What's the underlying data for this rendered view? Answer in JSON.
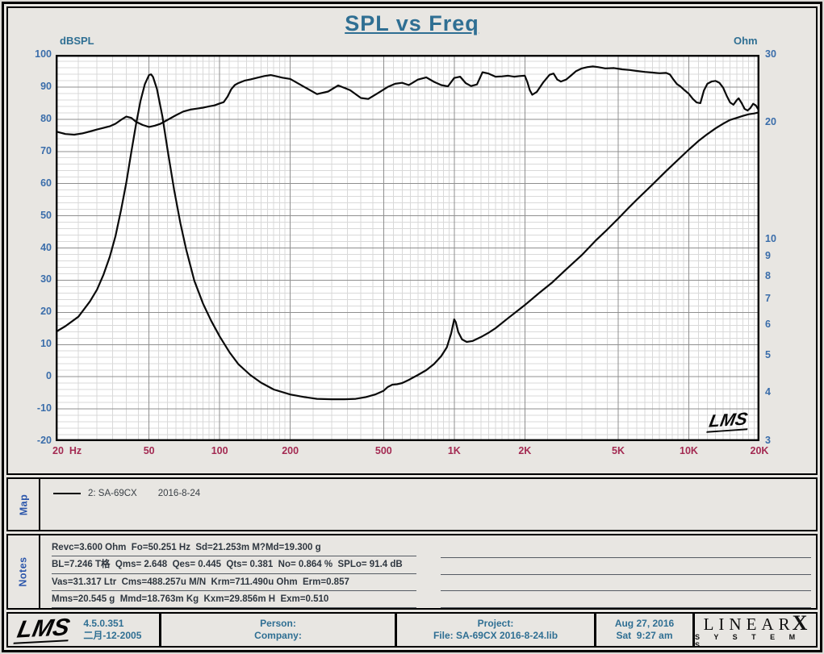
{
  "title": "SPL vs Freq",
  "colors": {
    "title_teal": "#2f6f93",
    "y_tick_blue": "#3a6daa",
    "x_tick_maroon": "#a32a52",
    "panel_label_blue": "#2a55aa",
    "curve_black": "#0a0a0a",
    "plot_background": "#ffffff",
    "page_background": "#e8e6e2"
  },
  "chart": {
    "left_axis_label": "dBSPL",
    "right_axis_label": "Ohm",
    "watermark": "LMS"
  },
  "chart_data": {
    "type": "line",
    "title": "SPL vs Freq",
    "grid": "on",
    "x_axis": {
      "label": "Hz",
      "scale": "log",
      "min": 20,
      "max": 20000,
      "tick_values": [
        20,
        50,
        100,
        200,
        500,
        1000,
        2000,
        5000,
        10000,
        20000
      ],
      "tick_labels": [
        "20  Hz",
        "50",
        "100",
        "200",
        "500",
        "1K",
        "2K",
        "5K",
        "10K",
        "20K"
      ]
    },
    "y_left_axis": {
      "label": "dBSPL",
      "scale": "linear",
      "min": -20,
      "max": 100,
      "ticks": [
        100,
        90,
        80,
        70,
        60,
        50,
        40,
        30,
        20,
        10,
        0,
        -10,
        -20
      ]
    },
    "y_right_axis": {
      "label": "Ohm",
      "scale": "log",
      "min": 3,
      "max": 30,
      "ticks": [
        30,
        20,
        10,
        9,
        8,
        7,
        6,
        5,
        4,
        3
      ]
    },
    "series": [
      {
        "name": "SPL (dBSPL)",
        "axis": "left",
        "color": "#0a0a0a",
        "points": [
          [
            20,
            76.2
          ],
          [
            22,
            75.4
          ],
          [
            24,
            75.2
          ],
          [
            26,
            75.6
          ],
          [
            28,
            76.2
          ],
          [
            30,
            76.8
          ],
          [
            32,
            77.3
          ],
          [
            34,
            77.8
          ],
          [
            36,
            78.6
          ],
          [
            38,
            79.8
          ],
          [
            40,
            80.8
          ],
          [
            42,
            80.4
          ],
          [
            44,
            79.2
          ],
          [
            47,
            78.2
          ],
          [
            50,
            77.6
          ],
          [
            53,
            78.0
          ],
          [
            56,
            78.6
          ],
          [
            60,
            79.8
          ],
          [
            65,
            81.2
          ],
          [
            70,
            82.4
          ],
          [
            75,
            83.0
          ],
          [
            80,
            83.3
          ],
          [
            85,
            83.6
          ],
          [
            90,
            84.0
          ],
          [
            95,
            84.3
          ],
          [
            100,
            84.9
          ],
          [
            104,
            85.3
          ],
          [
            108,
            87.0
          ],
          [
            112,
            89.3
          ],
          [
            116,
            90.6
          ],
          [
            120,
            91.2
          ],
          [
            128,
            92.0
          ],
          [
            136,
            92.4
          ],
          [
            145,
            92.9
          ],
          [
            155,
            93.4
          ],
          [
            165,
            93.7
          ],
          [
            175,
            93.3
          ],
          [
            185,
            92.9
          ],
          [
            200,
            92.5
          ],
          [
            230,
            90.0
          ],
          [
            260,
            87.8
          ],
          [
            290,
            88.6
          ],
          [
            320,
            90.5
          ],
          [
            360,
            89.0
          ],
          [
            400,
            86.6
          ],
          [
            430,
            86.3
          ],
          [
            470,
            88.0
          ],
          [
            520,
            90.0
          ],
          [
            560,
            91.0
          ],
          [
            600,
            91.3
          ],
          [
            640,
            90.6
          ],
          [
            700,
            92.3
          ],
          [
            760,
            93.0
          ],
          [
            820,
            91.6
          ],
          [
            880,
            90.6
          ],
          [
            940,
            90.2
          ],
          [
            1000,
            92.8
          ],
          [
            1060,
            93.2
          ],
          [
            1120,
            91.2
          ],
          [
            1180,
            90.3
          ],
          [
            1250,
            90.8
          ],
          [
            1320,
            94.6
          ],
          [
            1400,
            94.2
          ],
          [
            1500,
            93.2
          ],
          [
            1600,
            93.3
          ],
          [
            1700,
            93.5
          ],
          [
            1800,
            93.2
          ],
          [
            1900,
            93.4
          ],
          [
            2000,
            93.5
          ],
          [
            2050,
            91.5
          ],
          [
            2100,
            89.0
          ],
          [
            2150,
            87.6
          ],
          [
            2250,
            88.5
          ],
          [
            2400,
            91.5
          ],
          [
            2550,
            93.8
          ],
          [
            2650,
            94.2
          ],
          [
            2750,
            92.3
          ],
          [
            2850,
            91.7
          ],
          [
            3000,
            92.3
          ],
          [
            3150,
            93.6
          ],
          [
            3300,
            94.9
          ],
          [
            3500,
            95.8
          ],
          [
            3700,
            96.2
          ],
          [
            3900,
            96.4
          ],
          [
            4100,
            96.2
          ],
          [
            4400,
            95.8
          ],
          [
            4800,
            95.9
          ],
          [
            5200,
            95.5
          ],
          [
            5600,
            95.3
          ],
          [
            6000,
            95.0
          ],
          [
            6500,
            94.7
          ],
          [
            7000,
            94.5
          ],
          [
            7500,
            94.3
          ],
          [
            8000,
            94.4
          ],
          [
            8300,
            93.9
          ],
          [
            8600,
            92.3
          ],
          [
            8900,
            90.9
          ],
          [
            9200,
            90.2
          ],
          [
            9600,
            89.0
          ],
          [
            10000,
            87.9
          ],
          [
            10400,
            86.3
          ],
          [
            10800,
            85.2
          ],
          [
            11200,
            85.0
          ],
          [
            11600,
            88.9
          ],
          [
            12000,
            91.0
          ],
          [
            12500,
            91.7
          ],
          [
            13000,
            91.9
          ],
          [
            13500,
            91.3
          ],
          [
            14000,
            89.8
          ],
          [
            14500,
            87.3
          ],
          [
            15000,
            85.2
          ],
          [
            15500,
            84.5
          ],
          [
            16000,
            85.9
          ],
          [
            16300,
            86.5
          ],
          [
            16800,
            85.0
          ],
          [
            17300,
            83.2
          ],
          [
            17800,
            82.7
          ],
          [
            18300,
            83.5
          ],
          [
            18800,
            84.8
          ],
          [
            19300,
            84.3
          ],
          [
            19800,
            83.0
          ],
          [
            20000,
            82.0
          ]
        ]
      },
      {
        "name": "Impedance (Ohm)",
        "axis": "right",
        "color": "#0a0a0a",
        "points": [
          [
            20,
            5.75
          ],
          [
            22,
            5.95
          ],
          [
            25,
            6.3
          ],
          [
            28,
            6.9
          ],
          [
            30,
            7.4
          ],
          [
            32,
            8.1
          ],
          [
            34,
            9.0
          ],
          [
            36,
            10.2
          ],
          [
            38,
            11.9
          ],
          [
            40,
            14.0
          ],
          [
            42,
            16.8
          ],
          [
            44,
            19.8
          ],
          [
            46,
            22.8
          ],
          [
            48,
            25.2
          ],
          [
            50,
            26.6
          ],
          [
            51,
            26.7
          ],
          [
            52,
            26.3
          ],
          [
            54,
            24.5
          ],
          [
            57,
            20.8
          ],
          [
            60,
            17.0
          ],
          [
            64,
            13.4
          ],
          [
            68,
            11.0
          ],
          [
            72,
            9.4
          ],
          [
            78,
            7.8
          ],
          [
            85,
            6.8
          ],
          [
            92,
            6.15
          ],
          [
            100,
            5.6
          ],
          [
            110,
            5.1
          ],
          [
            120,
            4.75
          ],
          [
            135,
            4.45
          ],
          [
            150,
            4.25
          ],
          [
            170,
            4.08
          ],
          [
            200,
            3.96
          ],
          [
            230,
            3.9
          ],
          [
            260,
            3.86
          ],
          [
            300,
            3.85
          ],
          [
            340,
            3.85
          ],
          [
            380,
            3.86
          ],
          [
            420,
            3.9
          ],
          [
            460,
            3.96
          ],
          [
            500,
            4.05
          ],
          [
            520,
            4.14
          ],
          [
            545,
            4.2
          ],
          [
            570,
            4.21
          ],
          [
            600,
            4.24
          ],
          [
            640,
            4.32
          ],
          [
            700,
            4.45
          ],
          [
            760,
            4.58
          ],
          [
            820,
            4.75
          ],
          [
            880,
            4.98
          ],
          [
            930,
            5.25
          ],
          [
            970,
            5.7
          ],
          [
            1000,
            6.2
          ],
          [
            1015,
            6.1
          ],
          [
            1040,
            5.75
          ],
          [
            1080,
            5.5
          ],
          [
            1130,
            5.42
          ],
          [
            1200,
            5.45
          ],
          [
            1300,
            5.58
          ],
          [
            1400,
            5.72
          ],
          [
            1500,
            5.88
          ],
          [
            1700,
            6.25
          ],
          [
            2000,
            6.75
          ],
          [
            2300,
            7.25
          ],
          [
            2600,
            7.7
          ],
          [
            3000,
            8.35
          ],
          [
            3500,
            9.1
          ],
          [
            4000,
            9.9
          ],
          [
            4500,
            10.6
          ],
          [
            5000,
            11.3
          ],
          [
            5500,
            12.0
          ],
          [
            6000,
            12.65
          ],
          [
            7000,
            13.85
          ],
          [
            8000,
            15.0
          ],
          [
            9000,
            16.05
          ],
          [
            10000,
            17.05
          ],
          [
            11000,
            17.95
          ],
          [
            12000,
            18.7
          ],
          [
            13000,
            19.35
          ],
          [
            14000,
            19.9
          ],
          [
            15000,
            20.35
          ],
          [
            16000,
            20.6
          ],
          [
            17000,
            20.85
          ],
          [
            18000,
            21.05
          ],
          [
            19000,
            21.15
          ],
          [
            20000,
            21.3
          ]
        ]
      }
    ]
  },
  "map_panel": {
    "label": "Map",
    "legend": {
      "name": "2: SA-69CX",
      "date": "2016-8-24"
    }
  },
  "notes_panel": {
    "label": "Notes",
    "lines": [
      "Revc=3.600 Ohm  Fo=50.251 Hz  Sd=21.253m M?Md=19.300 g",
      "BL=7.246 T格  Qms= 2.648  Qes= 0.445  Qts= 0.381  No= 0.864 %  SPLo= 91.4 dB",
      "Vas=31.317 Ltr  Cms=488.257u M/N  Krm=711.490u Ohm  Erm=0.857",
      "Mms=20.545 g  Mmd=18.763m Kg  Kxm=29.856m H  Exm=0.510"
    ]
  },
  "footer": {
    "logo": "LMS",
    "version": {
      "number": "4.5.0.351",
      "date": "二月-12-2005"
    },
    "person": {
      "line1": "Person:",
      "line2": "Company:"
    },
    "project": {
      "line1": "Project:",
      "line2": "File: SA-69CX 2016-8-24.lib"
    },
    "datetime": {
      "line1": "Aug 27, 2016",
      "line2": "Sat  9:27 am"
    },
    "brand": {
      "name": "LINEAR",
      "x": "X",
      "sub": "S Y S T E M S"
    }
  }
}
